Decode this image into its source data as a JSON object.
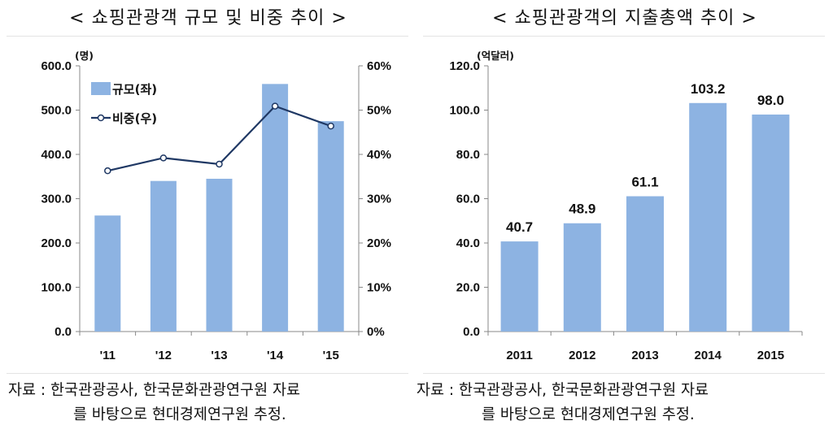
{
  "left": {
    "title": "< 쇼핑관광객 규모 및 비중 추이 >",
    "source_line1": "자료 : 한국관광공사, 한국문화관광연구원 자료",
    "source_line2": "를 바탕으로 현대경제연구원 추정."
  },
  "right": {
    "title": "< 쇼핑관광객의 지출총액 추이 >",
    "source_line1": "자료 : 한국관광공사, 한국문화관광연구원 자료",
    "source_line2": "를 바탕으로 현대경제연구원 추정."
  },
  "colors": {
    "bar": "#8db3e2",
    "line": "#1f3864",
    "marker_fill": "#ffffff",
    "axis": "#888888"
  },
  "chart_data": [
    {
      "type": "bar+line",
      "categories": [
        "'11",
        "'12",
        "'13",
        "'14",
        "'15"
      ],
      "y_unit": "(명)",
      "ylim": [
        0,
        600
      ],
      "yticks": [
        "0.0",
        "100.0",
        "200.0",
        "300.0",
        "400.0",
        "500.0",
        "600.0"
      ],
      "y2lim": [
        0,
        60
      ],
      "y2ticks": [
        "0%",
        "10%",
        "20%",
        "30%",
        "40%",
        "50%",
        "60%"
      ],
      "series": [
        {
          "name": "규모(좌)",
          "type": "bar",
          "axis": "left",
          "values": [
            262,
            340,
            345,
            559,
            475
          ]
        },
        {
          "name": "비중(우)",
          "type": "line",
          "axis": "right",
          "values": [
            36.3,
            39.2,
            37.8,
            50.9,
            46.4
          ]
        }
      ],
      "legend": "top-left",
      "grid": false
    },
    {
      "type": "bar",
      "categories": [
        "2011",
        "2012",
        "2013",
        "2014",
        "2015"
      ],
      "values": [
        40.7,
        48.9,
        61.1,
        103.2,
        98.0
      ],
      "data_labels": [
        "40.7",
        "48.9",
        "61.1",
        "103.2",
        "98.0"
      ],
      "y_unit": "(억달러)",
      "ylim": [
        0,
        120
      ],
      "yticks": [
        "0.0",
        "20.0",
        "40.0",
        "60.0",
        "80.0",
        "100.0",
        "120.0"
      ],
      "grid": false
    }
  ]
}
